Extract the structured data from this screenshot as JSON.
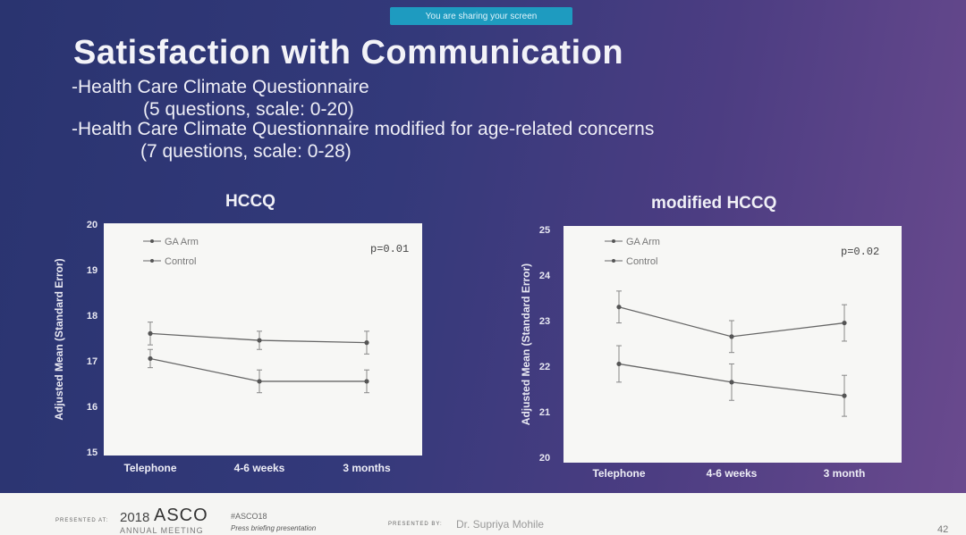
{
  "share_banner": "You are sharing your screen",
  "slide": {
    "title": "Satisfaction with Communication",
    "lines": [
      "-Health Care Climate Questionnaire",
      "(5 questions, scale: 0-20)",
      "-Health Care Climate Questionnaire modified for age-related concerns",
      "(7 questions, scale: 0-28)"
    ]
  },
  "chart_data": [
    {
      "type": "line",
      "title": "HCCQ",
      "ylabel": "Adjusted Mean (Standard Error)",
      "xlabel": "",
      "categories": [
        "Telephone",
        "4-6 weeks",
        "3 months"
      ],
      "ylim": [
        15,
        20
      ],
      "yticks": [
        "15",
        "16",
        "17",
        "18",
        "19",
        "20"
      ],
      "annotation": "p=0.01",
      "legend_position": "top-left",
      "grid": false,
      "series": [
        {
          "name": "GA Arm",
          "values": [
            17.6,
            17.45,
            17.4
          ],
          "error": [
            0.25,
            0.2,
            0.25
          ]
        },
        {
          "name": "Control",
          "values": [
            17.05,
            16.55,
            16.55
          ],
          "error": [
            0.2,
            0.25,
            0.25
          ]
        }
      ]
    },
    {
      "type": "line",
      "title": "modified HCCQ",
      "ylabel": "Adjusted Mean (Standard Error)",
      "xlabel": "",
      "categories": [
        "Telephone",
        "4-6 weeks",
        "3 month"
      ],
      "ylim": [
        20,
        25
      ],
      "yticks": [
        "20",
        "21",
        "22",
        "23",
        "24",
        "25"
      ],
      "annotation": "p=0.02",
      "legend_position": "top-left",
      "grid": false,
      "series": [
        {
          "name": "GA Arm",
          "values": [
            23.3,
            22.65,
            22.95
          ],
          "error": [
            0.35,
            0.35,
            0.4
          ]
        },
        {
          "name": "Control",
          "values": [
            22.05,
            21.65,
            21.35
          ],
          "error": [
            0.4,
            0.4,
            0.45
          ]
        }
      ]
    }
  ],
  "footer": {
    "presented_at": "PRESENTED AT:",
    "year": "2018",
    "asco": "ASCO",
    "annual_meeting": "ANNUAL MEETING",
    "hashtag": "#ASCO18",
    "briefing": "Press briefing presentation",
    "presented_by": "PRESENTED BY:",
    "presenter": "Dr. Supriya Mohile",
    "page": "42"
  }
}
